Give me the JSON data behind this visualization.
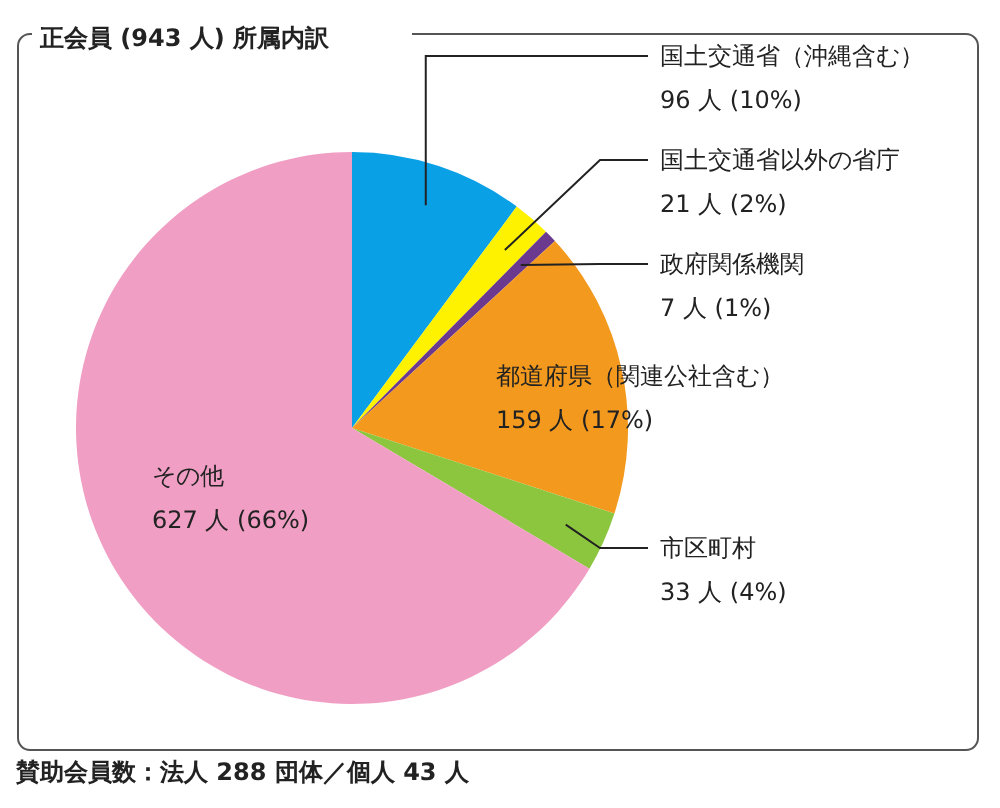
{
  "chart_data": {
    "type": "pie",
    "title": "正会員 (943 人) 所属内訳",
    "categories": [
      "国土交通省（沖縄含む）",
      "国土交通省以外の省庁",
      "政府関係機関",
      "都道府県（関連公社含む）",
      "市区町村",
      "その他"
    ],
    "values": [
      96,
      21,
      7,
      159,
      33,
      627
    ],
    "value_labels": [
      "96 人 (10%)",
      "21 人 (2%)",
      "7 人 (1%)",
      "159 人 (17%)",
      "33 人 (4%)",
      "627 人 (66%)"
    ],
    "colors": [
      "#0aa0e6",
      "#fff200",
      "#6b3a8e",
      "#f39a1e",
      "#8cc63e",
      "#f09ec4"
    ],
    "annotations": [
      "賛助会員数：法人 288 団体／個人 43 人"
    ]
  }
}
